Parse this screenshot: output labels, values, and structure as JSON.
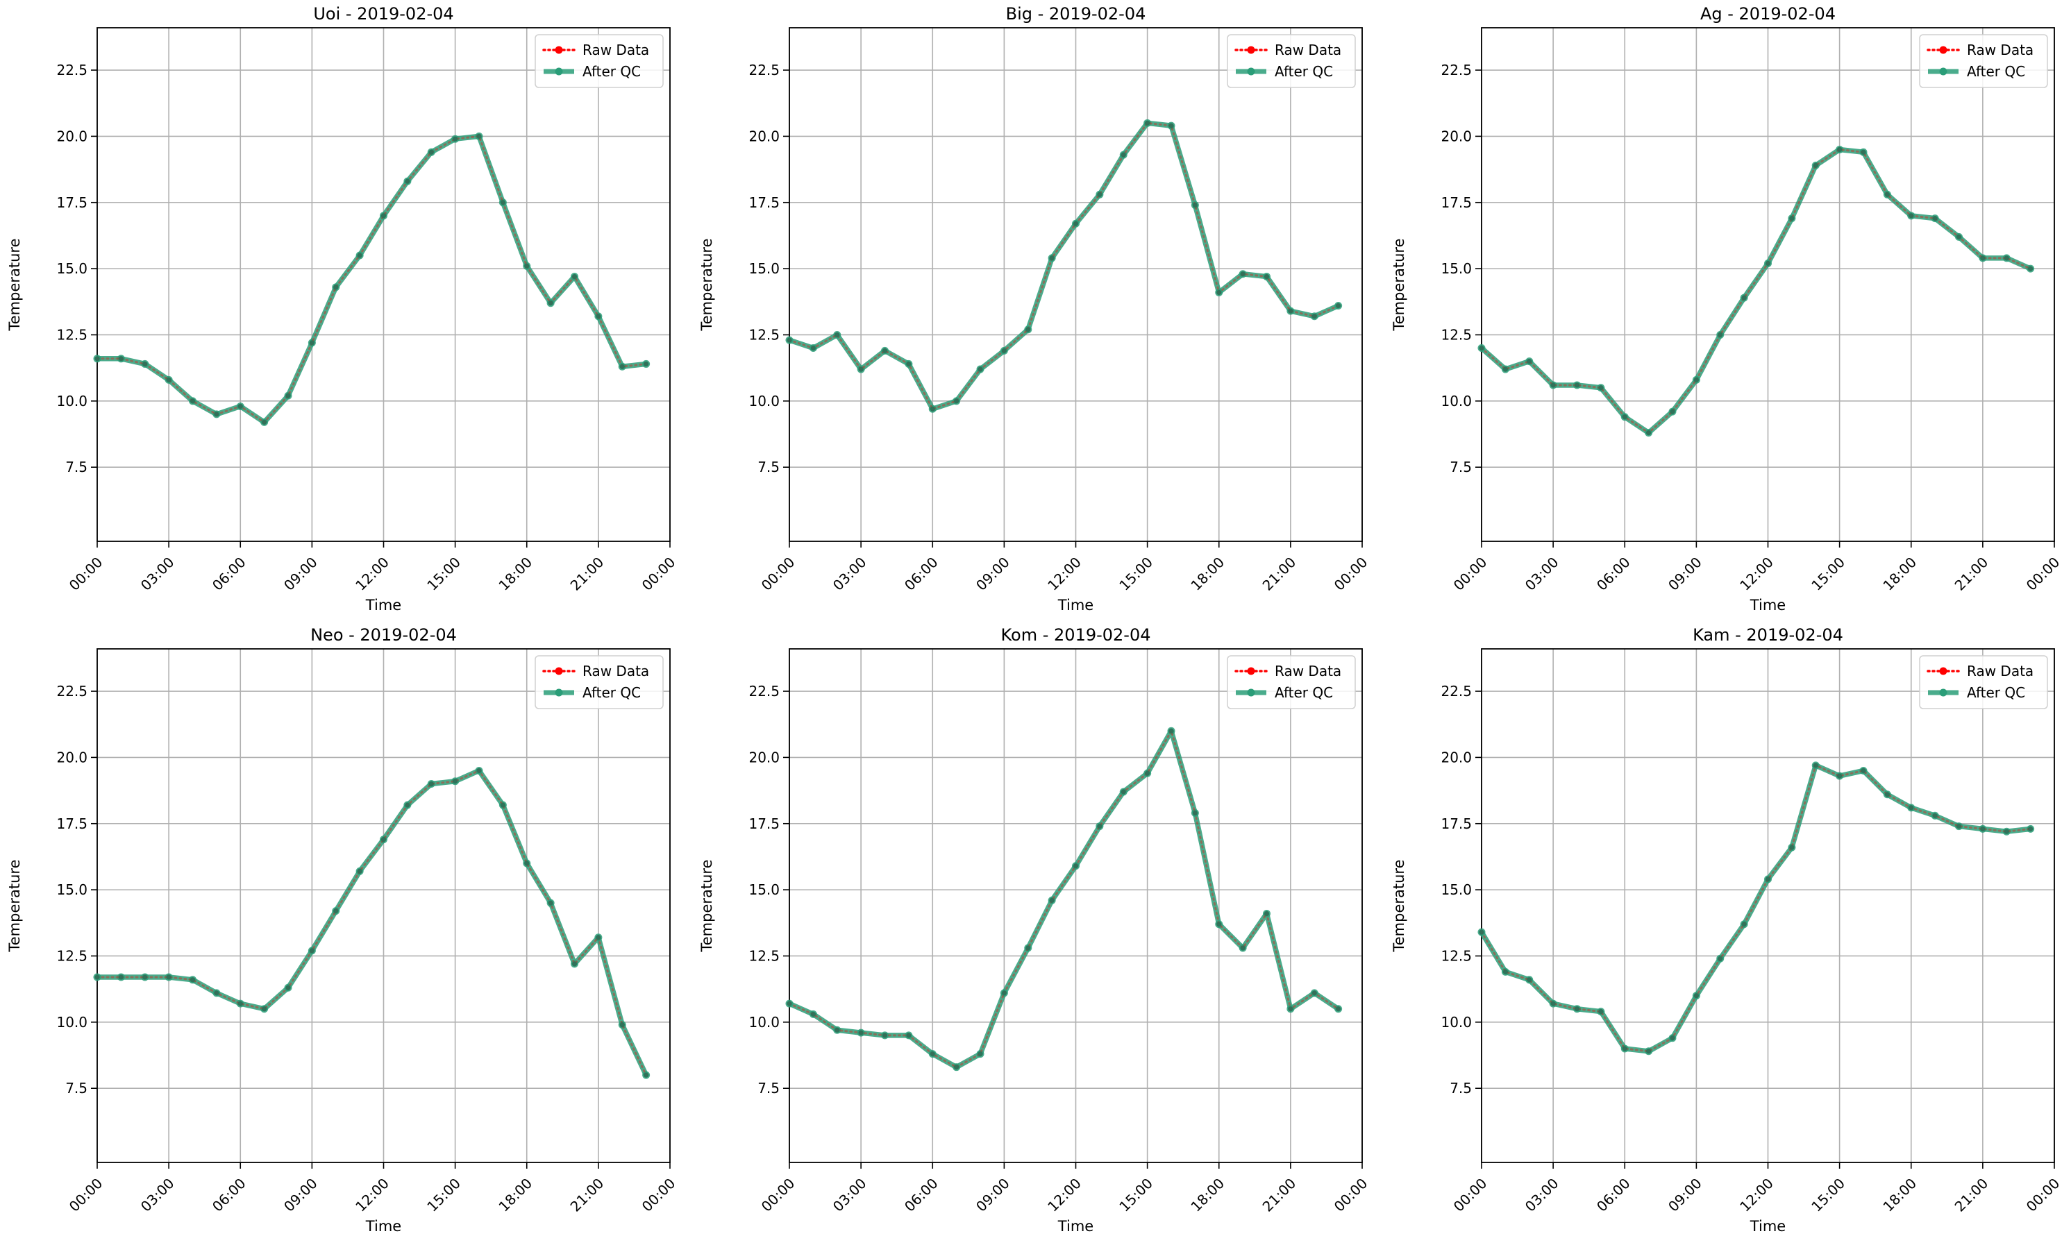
{
  "figure": {
    "background": "#ffffff"
  },
  "colors": {
    "raw": "#ff0000",
    "qc": "#2a9d78",
    "grid": "#b0b0b0",
    "axis": "#000000"
  },
  "legend": {
    "placement": "upper-right"
  },
  "chart_data": [
    {
      "type": "line",
      "title": "Uoi - 2019-02-04",
      "xlabel": "Time",
      "ylabel": "Temperature",
      "xlim": [
        "00:00",
        "24:00"
      ],
      "ylim": [
        4.7,
        24.1
      ],
      "xticks": [
        "00:00",
        "03:00",
        "06:00",
        "09:00",
        "12:00",
        "15:00",
        "18:00",
        "21:00",
        "00:00"
      ],
      "yticks": [
        "7.5",
        "10.0",
        "12.5",
        "15.0",
        "17.5",
        "20.0",
        "22.5"
      ],
      "grid": true,
      "legend": [
        "Raw Data",
        "After QC"
      ],
      "x": [
        "00:00",
        "01:00",
        "02:00",
        "03:00",
        "04:00",
        "05:00",
        "06:00",
        "07:00",
        "08:00",
        "09:00",
        "10:00",
        "11:00",
        "12:00",
        "13:00",
        "14:00",
        "15:00",
        "16:00",
        "17:00",
        "18:00",
        "19:00",
        "20:00",
        "21:00",
        "22:00",
        "23:00"
      ],
      "series": [
        {
          "name": "Raw Data",
          "color": "#ff0000",
          "values": [
            11.6,
            11.6,
            11.4,
            10.8,
            10.0,
            9.5,
            9.8,
            9.2,
            10.2,
            12.2,
            14.3,
            15.5,
            17.0,
            18.3,
            19.4,
            19.9,
            20.0,
            17.5,
            15.1,
            13.7,
            14.7,
            13.2,
            11.3,
            11.4
          ]
        },
        {
          "name": "After QC",
          "color": "#2a9d78",
          "values": [
            11.6,
            11.6,
            11.4,
            10.8,
            10.0,
            9.5,
            9.8,
            9.2,
            10.2,
            12.2,
            14.3,
            15.5,
            17.0,
            18.3,
            19.4,
            19.9,
            20.0,
            17.5,
            15.1,
            13.7,
            14.7,
            13.2,
            11.3,
            11.4
          ]
        }
      ]
    },
    {
      "type": "line",
      "title": "Big - 2019-02-04",
      "xlabel": "Time",
      "ylabel": "Temperature",
      "xlim": [
        "00:00",
        "24:00"
      ],
      "ylim": [
        4.7,
        24.1
      ],
      "xticks": [
        "00:00",
        "03:00",
        "06:00",
        "09:00",
        "12:00",
        "15:00",
        "18:00",
        "21:00",
        "00:00"
      ],
      "yticks": [
        "7.5",
        "10.0",
        "12.5",
        "15.0",
        "17.5",
        "20.0",
        "22.5"
      ],
      "grid": true,
      "legend": [
        "Raw Data",
        "After QC"
      ],
      "x": [
        "00:00",
        "01:00",
        "02:00",
        "03:00",
        "04:00",
        "05:00",
        "06:00",
        "07:00",
        "08:00",
        "09:00",
        "10:00",
        "11:00",
        "12:00",
        "13:00",
        "14:00",
        "15:00",
        "16:00",
        "17:00",
        "18:00",
        "19:00",
        "20:00",
        "21:00",
        "22:00",
        "23:00"
      ],
      "series": [
        {
          "name": "Raw Data",
          "color": "#ff0000",
          "values": [
            12.3,
            12.0,
            12.5,
            11.2,
            11.9,
            11.4,
            9.7,
            10.0,
            11.2,
            11.9,
            12.7,
            15.4,
            16.7,
            17.8,
            19.3,
            20.5,
            20.4,
            17.4,
            14.1,
            14.8,
            14.7,
            13.4,
            13.2,
            13.6
          ]
        },
        {
          "name": "After QC",
          "color": "#2a9d78",
          "values": [
            12.3,
            12.0,
            12.5,
            11.2,
            11.9,
            11.4,
            9.7,
            10.0,
            11.2,
            11.9,
            12.7,
            15.4,
            16.7,
            17.8,
            19.3,
            20.5,
            20.4,
            17.4,
            14.1,
            14.8,
            14.7,
            13.4,
            13.2,
            13.6
          ]
        }
      ]
    },
    {
      "type": "line",
      "title": "Ag - 2019-02-04",
      "xlabel": "Time",
      "ylabel": "Temperature",
      "xlim": [
        "00:00",
        "24:00"
      ],
      "ylim": [
        4.7,
        24.1
      ],
      "xticks": [
        "00:00",
        "03:00",
        "06:00",
        "09:00",
        "12:00",
        "15:00",
        "18:00",
        "21:00",
        "00:00"
      ],
      "yticks": [
        "7.5",
        "10.0",
        "12.5",
        "15.0",
        "17.5",
        "20.0",
        "22.5"
      ],
      "grid": true,
      "legend": [
        "Raw Data",
        "After QC"
      ],
      "x": [
        "00:00",
        "01:00",
        "02:00",
        "03:00",
        "04:00",
        "05:00",
        "06:00",
        "07:00",
        "08:00",
        "09:00",
        "10:00",
        "11:00",
        "12:00",
        "13:00",
        "14:00",
        "15:00",
        "16:00",
        "17:00",
        "18:00",
        "19:00",
        "20:00",
        "21:00",
        "22:00",
        "23:00"
      ],
      "series": [
        {
          "name": "Raw Data",
          "color": "#ff0000",
          "values": [
            12.0,
            11.2,
            11.5,
            10.6,
            10.6,
            10.5,
            9.4,
            8.8,
            9.6,
            10.8,
            12.5,
            13.9,
            15.2,
            16.9,
            18.9,
            19.5,
            19.4,
            17.8,
            17.0,
            16.9,
            16.2,
            15.4,
            15.4,
            15.0
          ]
        },
        {
          "name": "After QC",
          "color": "#2a9d78",
          "values": [
            12.0,
            11.2,
            11.5,
            10.6,
            10.6,
            10.5,
            9.4,
            8.8,
            9.6,
            10.8,
            12.5,
            13.9,
            15.2,
            16.9,
            18.9,
            19.5,
            19.4,
            17.8,
            17.0,
            16.9,
            16.2,
            15.4,
            15.4,
            15.0
          ]
        }
      ]
    },
    {
      "type": "line",
      "title": "Neo - 2019-02-04",
      "xlabel": "Time",
      "ylabel": "Temperature",
      "xlim": [
        "00:00",
        "24:00"
      ],
      "ylim": [
        4.7,
        24.1
      ],
      "xticks": [
        "00:00",
        "03:00",
        "06:00",
        "09:00",
        "12:00",
        "15:00",
        "18:00",
        "21:00",
        "00:00"
      ],
      "yticks": [
        "7.5",
        "10.0",
        "12.5",
        "15.0",
        "17.5",
        "20.0",
        "22.5"
      ],
      "grid": true,
      "legend": [
        "Raw Data",
        "After QC"
      ],
      "x": [
        "00:00",
        "01:00",
        "02:00",
        "03:00",
        "04:00",
        "05:00",
        "06:00",
        "07:00",
        "08:00",
        "09:00",
        "10:00",
        "11:00",
        "12:00",
        "13:00",
        "14:00",
        "15:00",
        "16:00",
        "17:00",
        "18:00",
        "19:00",
        "20:00",
        "21:00",
        "22:00",
        "23:00"
      ],
      "series": [
        {
          "name": "Raw Data",
          "color": "#ff0000",
          "values": [
            11.7,
            11.7,
            11.7,
            11.7,
            11.6,
            11.1,
            10.7,
            10.5,
            11.3,
            12.7,
            14.2,
            15.7,
            16.9,
            18.2,
            19.0,
            19.1,
            19.5,
            18.2,
            16.0,
            14.5,
            12.2,
            13.2,
            9.9,
            8.0
          ]
        },
        {
          "name": "After QC",
          "color": "#2a9d78",
          "values": [
            11.7,
            11.7,
            11.7,
            11.7,
            11.6,
            11.1,
            10.7,
            10.5,
            11.3,
            12.7,
            14.2,
            15.7,
            16.9,
            18.2,
            19.0,
            19.1,
            19.5,
            18.2,
            16.0,
            14.5,
            12.2,
            13.2,
            9.9,
            8.0
          ]
        }
      ]
    },
    {
      "type": "line",
      "title": "Kom - 2019-02-04",
      "xlabel": "Time",
      "ylabel": "Temperature",
      "xlim": [
        "00:00",
        "24:00"
      ],
      "ylim": [
        4.7,
        24.1
      ],
      "xticks": [
        "00:00",
        "03:00",
        "06:00",
        "09:00",
        "12:00",
        "15:00",
        "18:00",
        "21:00",
        "00:00"
      ],
      "yticks": [
        "7.5",
        "10.0",
        "12.5",
        "15.0",
        "17.5",
        "20.0",
        "22.5"
      ],
      "grid": true,
      "legend": [
        "Raw Data",
        "After QC"
      ],
      "x": [
        "00:00",
        "01:00",
        "02:00",
        "03:00",
        "04:00",
        "05:00",
        "06:00",
        "07:00",
        "08:00",
        "09:00",
        "10:00",
        "11:00",
        "12:00",
        "13:00",
        "14:00",
        "15:00",
        "16:00",
        "17:00",
        "18:00",
        "19:00",
        "20:00",
        "21:00",
        "22:00",
        "23:00"
      ],
      "series": [
        {
          "name": "Raw Data",
          "color": "#ff0000",
          "values": [
            10.7,
            10.3,
            9.7,
            9.6,
            9.5,
            9.5,
            8.8,
            8.3,
            8.8,
            11.1,
            12.8,
            14.6,
            15.9,
            17.4,
            18.7,
            19.4,
            21.0,
            17.9,
            13.7,
            12.8,
            14.1,
            10.5,
            11.1,
            10.5
          ]
        },
        {
          "name": "After QC",
          "color": "#2a9d78",
          "values": [
            10.7,
            10.3,
            9.7,
            9.6,
            9.5,
            9.5,
            8.8,
            8.3,
            8.8,
            11.1,
            12.8,
            14.6,
            15.9,
            17.4,
            18.7,
            19.4,
            21.0,
            17.9,
            13.7,
            12.8,
            14.1,
            10.5,
            11.1,
            10.5
          ]
        }
      ]
    },
    {
      "type": "line",
      "title": "Kam - 2019-02-04",
      "xlabel": "Time",
      "ylabel": "Temperature",
      "xlim": [
        "00:00",
        "24:00"
      ],
      "ylim": [
        4.7,
        24.1
      ],
      "xticks": [
        "00:00",
        "03:00",
        "06:00",
        "09:00",
        "12:00",
        "15:00",
        "18:00",
        "21:00",
        "00:00"
      ],
      "yticks": [
        "7.5",
        "10.0",
        "12.5",
        "15.0",
        "17.5",
        "20.0",
        "22.5"
      ],
      "grid": true,
      "legend": [
        "Raw Data",
        "After QC"
      ],
      "x": [
        "00:00",
        "01:00",
        "02:00",
        "03:00",
        "04:00",
        "05:00",
        "06:00",
        "07:00",
        "08:00",
        "09:00",
        "10:00",
        "11:00",
        "12:00",
        "13:00",
        "14:00",
        "15:00",
        "16:00",
        "17:00",
        "18:00",
        "19:00",
        "20:00",
        "21:00",
        "22:00",
        "23:00"
      ],
      "series": [
        {
          "name": "Raw Data",
          "color": "#ff0000",
          "values": [
            13.4,
            11.9,
            11.6,
            10.7,
            10.5,
            10.4,
            9.0,
            8.9,
            9.4,
            11.0,
            12.4,
            13.7,
            15.4,
            16.6,
            19.7,
            19.3,
            19.5,
            18.6,
            18.1,
            17.8,
            17.4,
            17.3,
            17.2,
            17.3
          ]
        },
        {
          "name": "After QC",
          "color": "#2a9d78",
          "values": [
            13.4,
            11.9,
            11.6,
            10.7,
            10.5,
            10.4,
            9.0,
            8.9,
            9.4,
            11.0,
            12.4,
            13.7,
            15.4,
            16.6,
            19.7,
            19.3,
            19.5,
            18.6,
            18.1,
            17.8,
            17.4,
            17.3,
            17.2,
            17.3
          ]
        }
      ]
    }
  ]
}
